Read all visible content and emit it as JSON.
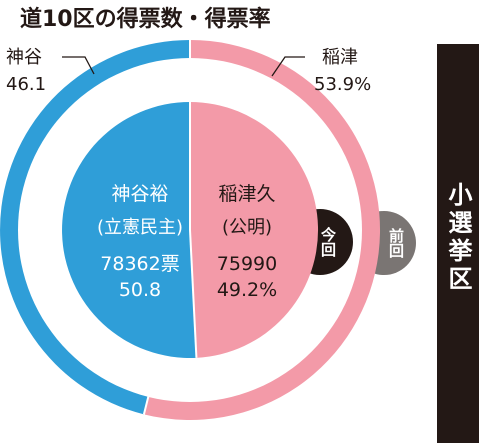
{
  "title": "道10区の得票数・得票率",
  "side_label": "小選挙区",
  "now_label": "今回",
  "prev_label": "前回",
  "colors": {
    "blue": "#2f9ed8",
    "pink": "#f39aa8",
    "dark": "#231815",
    "gray": "#7a7573",
    "white": "#ffffff"
  },
  "chart_data": [
    {
      "type": "pie",
      "name": "前回",
      "labels": [
        "神谷",
        "稲津"
      ],
      "values": [
        46.1,
        53.9
      ],
      "display": [
        "46.1",
        "53.9%"
      ]
    },
    {
      "type": "pie",
      "name": "今回",
      "labels": [
        "神谷裕（立憲民主）",
        "稲津久（公明）"
      ],
      "values": [
        50.8,
        49.2
      ],
      "votes": [
        78362,
        75990
      ]
    }
  ],
  "outer": {
    "left_name": "神谷",
    "left_value": "46.1",
    "right_name": "稲津",
    "right_value": "53.9%"
  },
  "inner": {
    "left_name": "神谷裕",
    "left_party": "(立憲民主)",
    "left_votes": "78362票",
    "left_pct": "50.8",
    "right_name": "稲津久",
    "right_party": "(公明)",
    "right_votes": "75990",
    "right_pct": "49.2%"
  }
}
